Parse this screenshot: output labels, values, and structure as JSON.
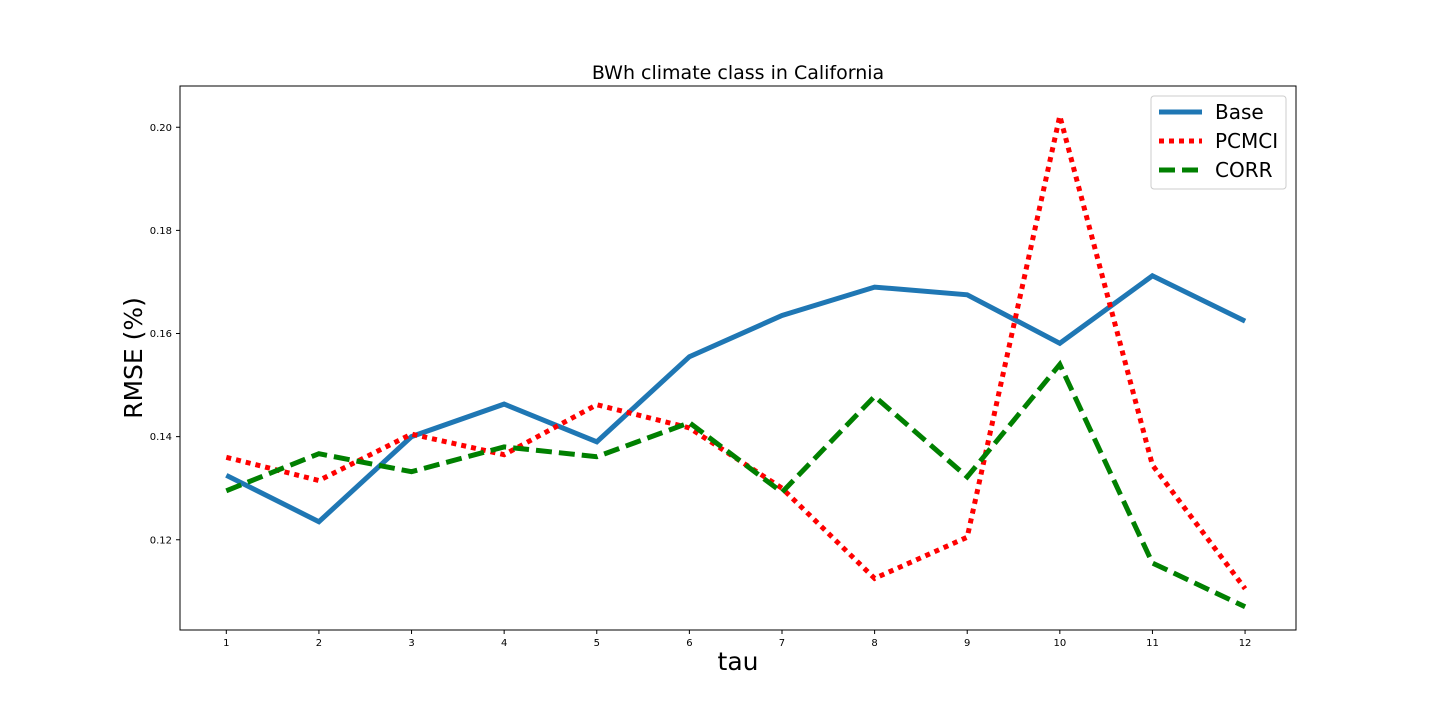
{
  "chart_data": {
    "type": "line",
    "title": "BWh climate class in California",
    "xlabel": "tau",
    "ylabel": "RMSE (%)",
    "x": [
      1,
      2,
      3,
      4,
      5,
      6,
      7,
      8,
      9,
      10,
      11,
      12
    ],
    "x_ticks": [
      "1",
      "2",
      "3",
      "4",
      "5",
      "6",
      "7",
      "8",
      "9",
      "10",
      "11",
      "12"
    ],
    "xlim": [
      0.5,
      12.55
    ],
    "y_ticks": [
      "0.12",
      "0.14",
      "0.16",
      "0.18",
      "0.20"
    ],
    "ylim": [
      0.1025,
      0.208
    ],
    "grid": false,
    "legend_position": "upper right",
    "series": [
      {
        "name": "Base",
        "color": "#1f77b4",
        "style": "solid",
        "values": [
          0.1325,
          0.1235,
          0.14,
          0.1463,
          0.139,
          0.1555,
          0.1635,
          0.169,
          0.1675,
          0.1581,
          0.1712,
          0.1624
        ]
      },
      {
        "name": "PCMCI",
        "color": "#ff0000",
        "style": "dotted",
        "values": [
          0.136,
          0.1315,
          0.1405,
          0.1365,
          0.1462,
          0.1417,
          0.13,
          0.1125,
          0.1205,
          0.2022,
          0.1345,
          0.1105
        ]
      },
      {
        "name": "CORR",
        "color": "#008000",
        "style": "dashed",
        "values": [
          0.1295,
          0.1367,
          0.1332,
          0.138,
          0.1361,
          0.1427,
          0.1292,
          0.1478,
          0.1322,
          0.154,
          0.1155,
          0.107
        ]
      }
    ]
  }
}
